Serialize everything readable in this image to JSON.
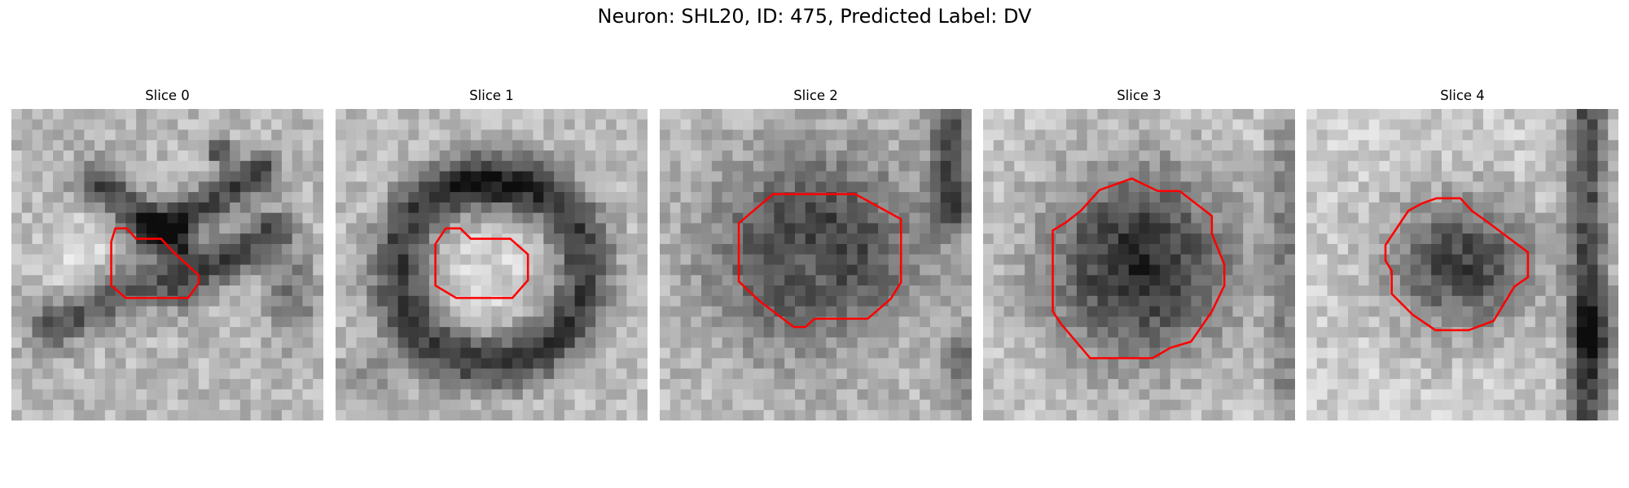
{
  "figure": {
    "title": "Neuron: SHL20, ID: 475, Predicted Label: DV",
    "contour_color": "#ff0000",
    "panels": [
      {
        "title": "Slice 0",
        "image": "grayscale EM slice with red contour"
      },
      {
        "title": "Slice 1",
        "image": "grayscale EM slice with red contour"
      },
      {
        "title": "Slice 2",
        "image": "grayscale EM slice with red contour"
      },
      {
        "title": "Slice 3",
        "image": "grayscale EM slice with red contour"
      },
      {
        "title": "Slice 4",
        "image": "grayscale EM slice with red contour"
      }
    ]
  }
}
